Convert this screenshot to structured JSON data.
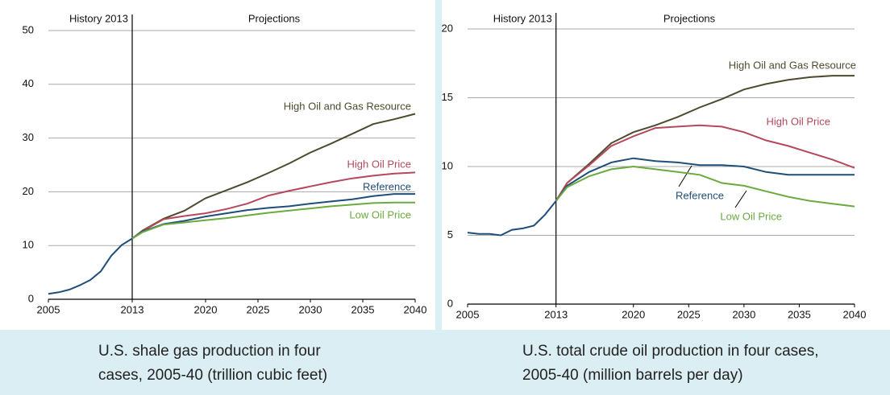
{
  "chart_data": [
    {
      "type": "line",
      "title": "U.S. shale gas production in four cases, 2005-40 (trillion cubic feet)",
      "annotations": {
        "history": "History 2013",
        "projections": "Projections"
      },
      "x": [
        2005,
        2006,
        2007,
        2008,
        2009,
        2010,
        2011,
        2012,
        2013,
        2014,
        2016,
        2018,
        2020,
        2022,
        2024,
        2026,
        2028,
        2030,
        2032,
        2034,
        2036,
        2038,
        2040
      ],
      "xlim": [
        2005,
        2040
      ],
      "xticks": [
        2005,
        2013,
        2020,
        2025,
        2030,
        2035,
        2040
      ],
      "ylim": [
        0,
        50
      ],
      "yticks": [
        0,
        10,
        20,
        30,
        40,
        50
      ],
      "grid": true,
      "series": [
        {
          "name": "High Oil and Gas Resource",
          "color": "#4e4a2e",
          "values": [
            null,
            null,
            null,
            null,
            null,
            null,
            null,
            null,
            11.3,
            12.8,
            15.0,
            16.5,
            18.8,
            20.3,
            21.8,
            23.5,
            25.3,
            27.3,
            29.0,
            30.8,
            32.6,
            33.5,
            34.5
          ]
        },
        {
          "name": "High Oil Price",
          "color": "#b5485a",
          "values": [
            null,
            null,
            null,
            null,
            null,
            null,
            null,
            null,
            11.3,
            12.7,
            14.9,
            15.5,
            16.0,
            16.8,
            17.8,
            19.3,
            20.2,
            21.0,
            21.8,
            22.5,
            23.0,
            23.4,
            23.6
          ]
        },
        {
          "name": "Reference",
          "color": "#1f4e79",
          "values": [
            1.0,
            1.3,
            1.8,
            2.6,
            3.6,
            5.2,
            8.1,
            10.1,
            11.3,
            12.6,
            14.0,
            14.6,
            15.4,
            16.0,
            16.6,
            17.0,
            17.3,
            17.8,
            18.2,
            18.6,
            19.2,
            19.6,
            19.6
          ]
        },
        {
          "name": "Low Oil Price",
          "color": "#6aaa3f",
          "values": [
            null,
            null,
            null,
            null,
            null,
            null,
            null,
            null,
            11.3,
            12.5,
            13.9,
            14.3,
            14.7,
            15.1,
            15.6,
            16.1,
            16.5,
            16.9,
            17.3,
            17.6,
            17.9,
            18.0,
            18.0
          ]
        }
      ]
    },
    {
      "type": "line",
      "title": "U.S. total crude oil production in four cases, 2005-40 (million barrels per day)",
      "annotations": {
        "history": "History 2013",
        "projections": "Projections"
      },
      "x": [
        2005,
        2006,
        2007,
        2008,
        2009,
        2010,
        2011,
        2012,
        2013,
        2014,
        2016,
        2018,
        2020,
        2022,
        2024,
        2026,
        2028,
        2030,
        2032,
        2034,
        2036,
        2038,
        2040
      ],
      "xlim": [
        2005,
        2040
      ],
      "xticks": [
        2005,
        2013,
        2020,
        2025,
        2030,
        2035,
        2040
      ],
      "ylim": [
        0,
        20
      ],
      "yticks": [
        0,
        5,
        10,
        15,
        20
      ],
      "grid": true,
      "series": [
        {
          "name": "High Oil and Gas Resource",
          "color": "#4e4a2e",
          "values": [
            null,
            null,
            null,
            null,
            null,
            null,
            null,
            null,
            7.5,
            8.8,
            10.2,
            11.7,
            12.5,
            13.0,
            13.6,
            14.3,
            14.9,
            15.6,
            16.0,
            16.3,
            16.5,
            16.6,
            16.6
          ]
        },
        {
          "name": "High Oil Price",
          "color": "#b5485a",
          "values": [
            null,
            null,
            null,
            null,
            null,
            null,
            null,
            null,
            7.5,
            8.8,
            10.1,
            11.5,
            12.2,
            12.8,
            12.9,
            13.0,
            12.9,
            12.5,
            11.9,
            11.5,
            11.0,
            10.5,
            9.9
          ]
        },
        {
          "name": "Reference",
          "color": "#1f4e79",
          "values": [
            5.2,
            5.1,
            5.1,
            5.0,
            5.4,
            5.5,
            5.7,
            6.5,
            7.5,
            8.6,
            9.6,
            10.3,
            10.6,
            10.4,
            10.3,
            10.1,
            10.1,
            10.0,
            9.6,
            9.4,
            9.4,
            9.4,
            9.4
          ]
        },
        {
          "name": "Low Oil Price",
          "color": "#6aaa3f",
          "values": [
            null,
            null,
            null,
            null,
            null,
            null,
            null,
            null,
            7.5,
            8.5,
            9.3,
            9.8,
            10.0,
            9.8,
            9.6,
            9.4,
            8.8,
            8.6,
            8.2,
            7.8,
            7.5,
            7.3,
            7.1
          ]
        }
      ]
    }
  ]
}
